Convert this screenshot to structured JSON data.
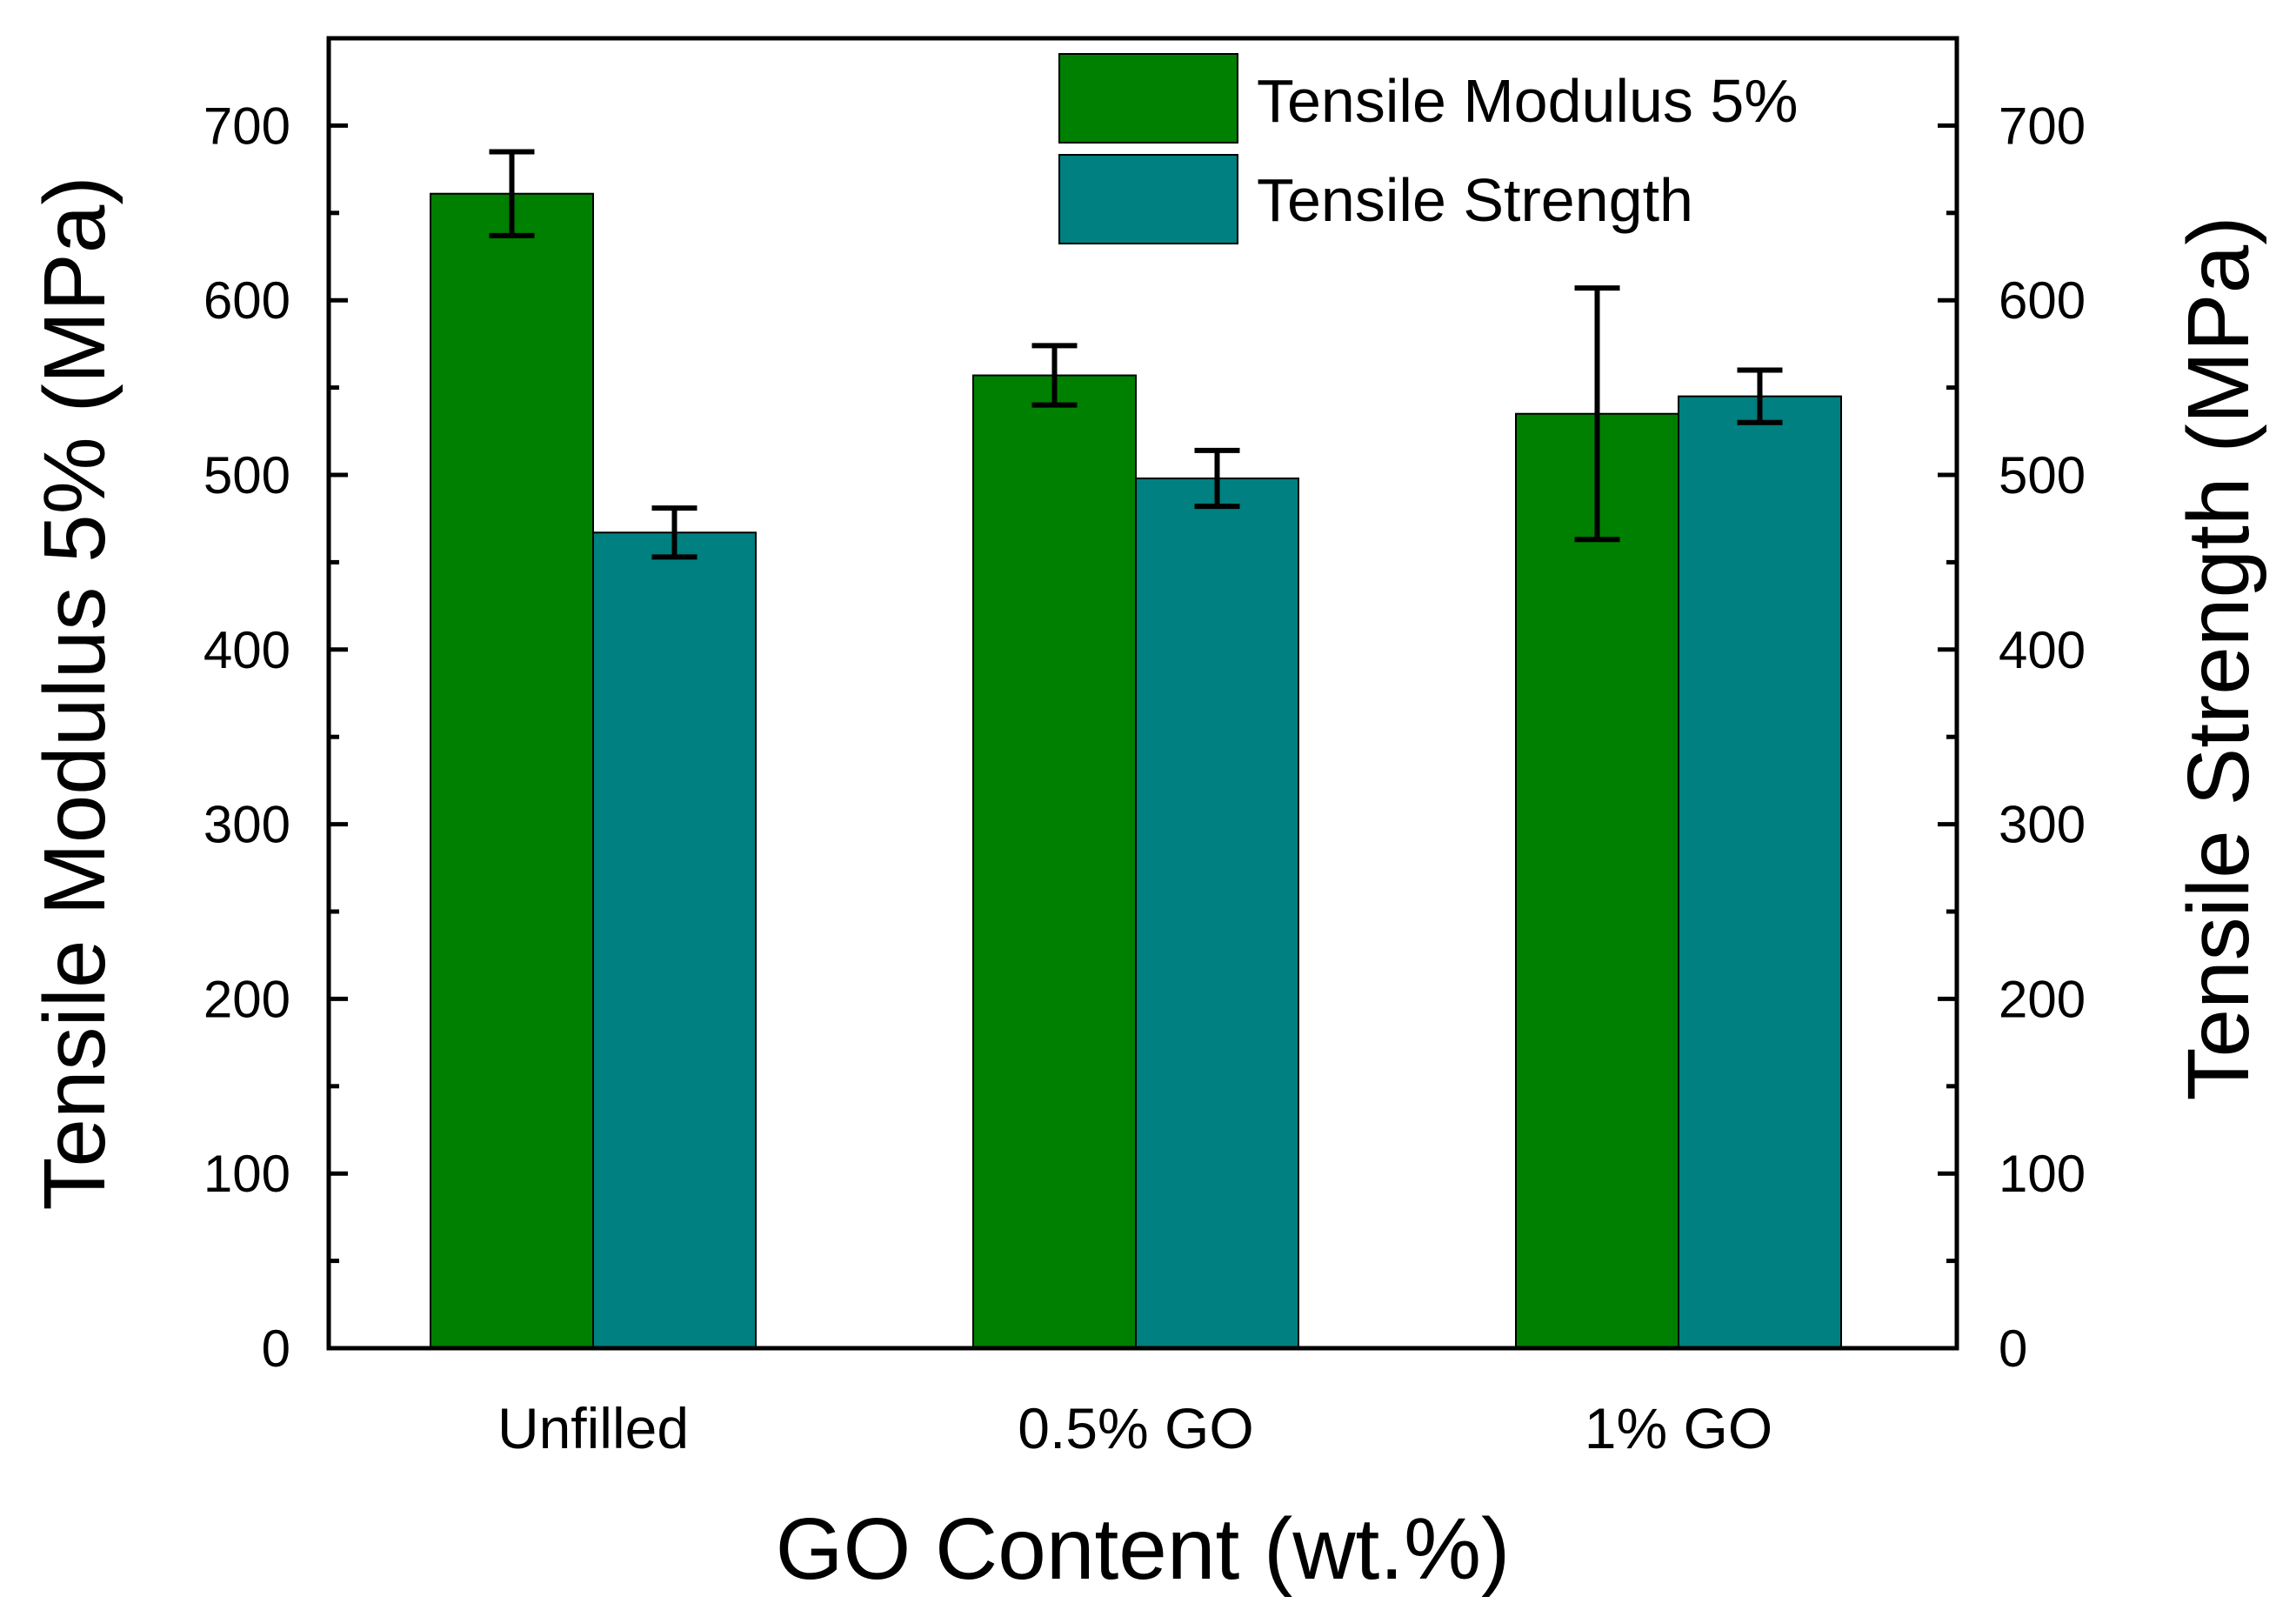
{
  "chart_data": {
    "type": "bar",
    "categories": [
      "Unfilled",
      "0.5% GO",
      "1% GO"
    ],
    "series": [
      {
        "name": "Tensile Modulus 5%",
        "values": [
          661,
          557,
          535
        ],
        "errors": [
          24,
          17,
          72
        ],
        "color": "#008000",
        "axis": "left"
      },
      {
        "name": "Tensile Strength",
        "values": [
          467,
          498,
          545
        ],
        "errors": [
          14,
          16,
          15
        ],
        "color": "#008080",
        "axis": "right"
      }
    ],
    "xlabel": "GO Content (wt.%)",
    "ylabel": "Tensile Modulus 5% (MPa)",
    "y2label": "Tensile Strength (MPa)",
    "ylim": [
      0,
      750
    ],
    "y2lim": [
      0,
      750
    ],
    "yticks": [
      0,
      100,
      200,
      300,
      400,
      500,
      600,
      700
    ],
    "legend_position": "top-right"
  }
}
